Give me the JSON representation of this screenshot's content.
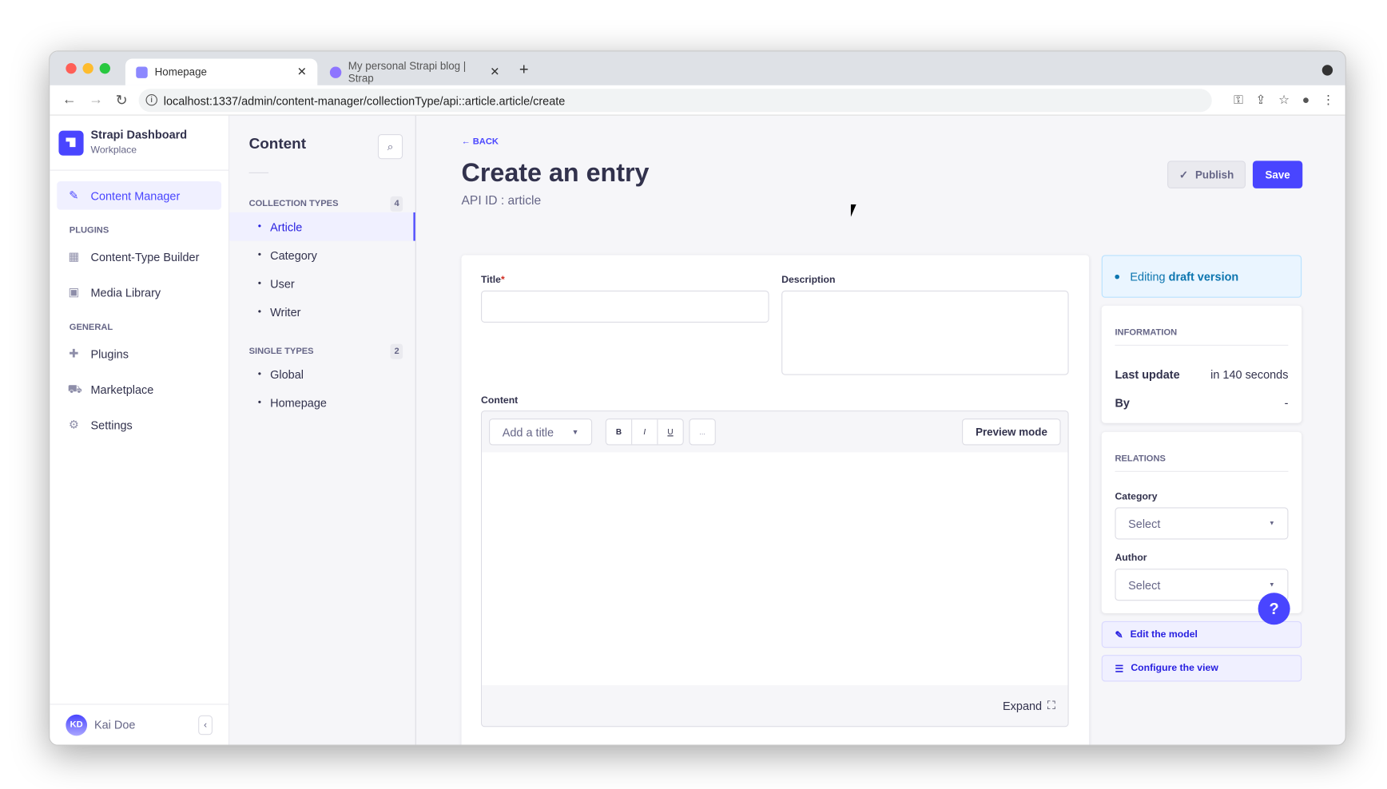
{
  "browser": {
    "tabs": [
      {
        "title": "Homepage"
      },
      {
        "title": "My personal Strapi blog | Strap"
      }
    ],
    "url": "localhost:1337/admin/content-manager/collectionType/api::article.article/create"
  },
  "sidebar": {
    "brand": "Strapi Dashboard",
    "workspace": "Workplace",
    "active": "Content Manager",
    "plugins_heading": "PLUGINS",
    "plugins": [
      "Content-Type Builder",
      "Media Library"
    ],
    "general_heading": "GENERAL",
    "general": [
      "Plugins",
      "Marketplace",
      "Settings"
    ],
    "user": {
      "initials": "KD",
      "name": "Kai Doe"
    }
  },
  "subnav": {
    "title": "Content",
    "collection_heading": "COLLECTION TYPES",
    "collection_count": "4",
    "collection_items": [
      "Article",
      "Category",
      "User",
      "Writer"
    ],
    "single_heading": "SINGLE TYPES",
    "single_count": "2",
    "single_items": [
      "Global",
      "Homepage"
    ]
  },
  "header": {
    "back": "BACK",
    "title": "Create an entry",
    "api_id": "API ID : article",
    "publish": "Publish",
    "save": "Save"
  },
  "form": {
    "title_label": "Title",
    "required_mark": "*",
    "title_value": "",
    "description_label": "Description",
    "description_value": "",
    "content_label": "Content",
    "heading_select": "Add a title",
    "bold": "B",
    "italic": "I",
    "underline": "U",
    "more": "...",
    "preview": "Preview mode",
    "expand": "Expand"
  },
  "panel": {
    "status_prefix": "Editing",
    "status_strong": "draft version",
    "info_heading": "INFORMATION",
    "last_update_label": "Last update",
    "last_update_value": "in 140 seconds",
    "by_label": "By",
    "by_value": "-",
    "relations_heading": "RELATIONS",
    "category_label": "Category",
    "category_value": "Select",
    "author_label": "Author",
    "author_value": "Select",
    "edit_model": "Edit the model",
    "configure_view": "Configure the view"
  },
  "help": "?",
  "colors": {
    "primary": "#4945ff",
    "draft": "#0c75af"
  }
}
